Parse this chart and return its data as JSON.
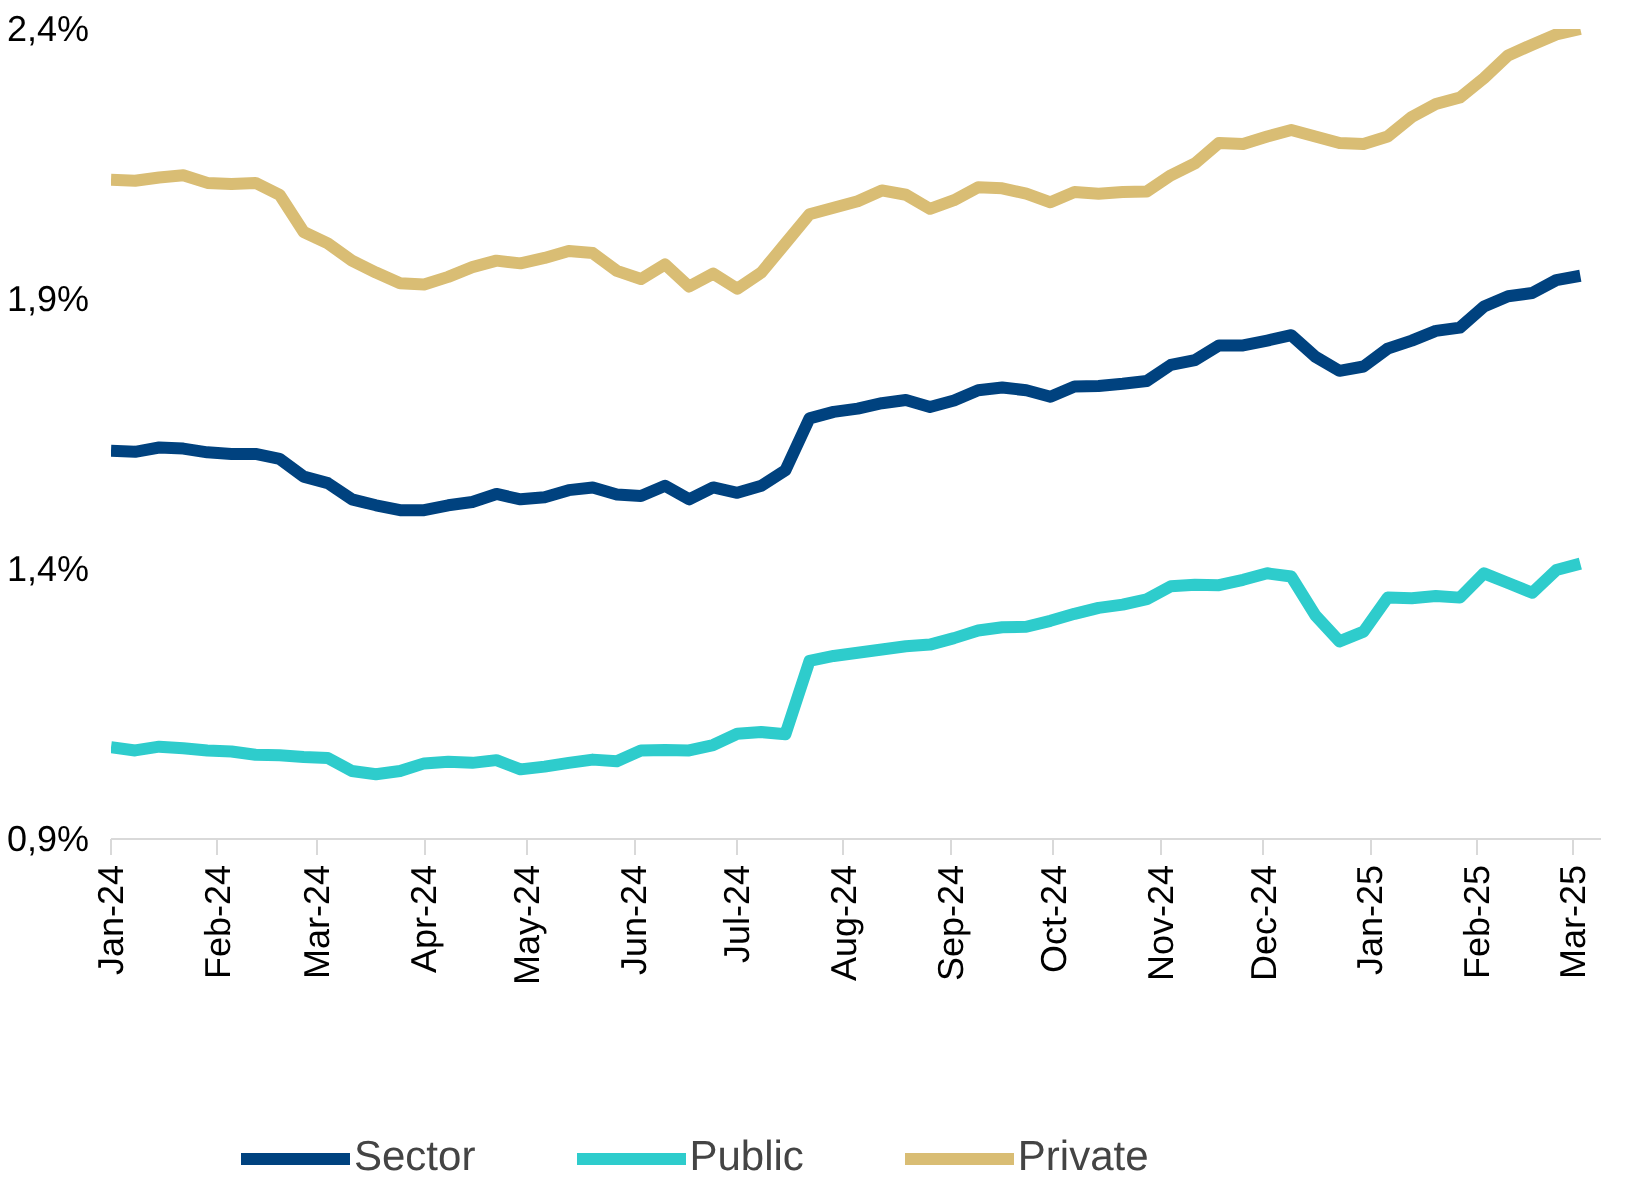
{
  "chart_data": {
    "type": "line",
    "line_style": "solid",
    "marker": "none",
    "grid": false,
    "legend": "bottom",
    "x": [
      "2024-01-01",
      "2024-01-08",
      "2024-01-15",
      "2024-01-22",
      "2024-01-29",
      "2024-02-05",
      "2024-02-12",
      "2024-02-19",
      "2024-02-26",
      "2024-03-04",
      "2024-03-11",
      "2024-03-18",
      "2024-03-25",
      "2024-04-01",
      "2024-04-08",
      "2024-04-15",
      "2024-04-22",
      "2024-04-29",
      "2024-05-06",
      "2024-05-13",
      "2024-05-20",
      "2024-05-27",
      "2024-06-03",
      "2024-06-10",
      "2024-06-17",
      "2024-06-24",
      "2024-07-01",
      "2024-07-08",
      "2024-07-15",
      "2024-07-22",
      "2024-07-29",
      "2024-08-05",
      "2024-08-12",
      "2024-08-19",
      "2024-08-26",
      "2024-09-02",
      "2024-09-09",
      "2024-09-16",
      "2024-09-23",
      "2024-09-30",
      "2024-10-07",
      "2024-10-14",
      "2024-10-21",
      "2024-10-28",
      "2024-11-04",
      "2024-11-11",
      "2024-11-18",
      "2024-11-25",
      "2024-12-02",
      "2024-12-09",
      "2024-12-16",
      "2024-12-23",
      "2024-12-30",
      "2025-01-06",
      "2025-01-13",
      "2025-01-20",
      "2025-01-27",
      "2025-02-03",
      "2025-02-10",
      "2025-02-17",
      "2025-02-24",
      "2025-03-03"
    ],
    "series": [
      {
        "name": "Sector",
        "color": "#00427f",
        "values": [
          1.619,
          1.617,
          1.625,
          1.623,
          1.616,
          1.613,
          1.613,
          1.604,
          1.571,
          1.559,
          1.529,
          1.518,
          1.509,
          1.509,
          1.518,
          1.524,
          1.539,
          1.529,
          1.533,
          1.546,
          1.551,
          1.538,
          1.535,
          1.554,
          1.529,
          1.551,
          1.541,
          1.554,
          1.583,
          1.679,
          1.691,
          1.697,
          1.707,
          1.713,
          1.7,
          1.712,
          1.731,
          1.736,
          1.731,
          1.719,
          1.738,
          1.739,
          1.743,
          1.748,
          1.778,
          1.787,
          1.814,
          1.814,
          1.823,
          1.833,
          1.793,
          1.767,
          1.775,
          1.808,
          1.823,
          1.841,
          1.847,
          1.886,
          1.905,
          1.911,
          1.935,
          1.943
        ]
      },
      {
        "name": "Public",
        "color": "#2ecccc",
        "values": [
          1.07,
          1.064,
          1.071,
          1.068,
          1.064,
          1.062,
          1.056,
          1.055,
          1.052,
          1.05,
          1.026,
          1.02,
          1.026,
          1.04,
          1.043,
          1.041,
          1.046,
          1.029,
          1.034,
          1.041,
          1.047,
          1.044,
          1.064,
          1.065,
          1.064,
          1.074,
          1.095,
          1.098,
          1.094,
          1.23,
          1.239,
          1.245,
          1.251,
          1.257,
          1.26,
          1.272,
          1.286,
          1.292,
          1.293,
          1.304,
          1.317,
          1.328,
          1.334,
          1.344,
          1.368,
          1.371,
          1.37,
          1.38,
          1.392,
          1.386,
          1.314,
          1.266,
          1.284,
          1.347,
          1.346,
          1.35,
          1.347,
          1.392,
          1.374,
          1.356,
          1.398,
          1.41
        ]
      },
      {
        "name": "Private",
        "color": "#d9bd74",
        "values": [
          2.121,
          2.119,
          2.125,
          2.129,
          2.115,
          2.113,
          2.115,
          2.093,
          2.024,
          2.003,
          1.971,
          1.949,
          1.929,
          1.927,
          1.941,
          1.959,
          1.971,
          1.966,
          1.976,
          1.989,
          1.985,
          1.952,
          1.937,
          1.964,
          1.923,
          1.947,
          1.919,
          1.949,
          2.003,
          2.057,
          2.069,
          2.081,
          2.101,
          2.093,
          2.067,
          2.083,
          2.107,
          2.105,
          2.095,
          2.079,
          2.098,
          2.095,
          2.098,
          2.099,
          2.129,
          2.151,
          2.189,
          2.187,
          2.201,
          2.213,
          2.201,
          2.189,
          2.187,
          2.201,
          2.237,
          2.261,
          2.273,
          2.309,
          2.351,
          2.371,
          2.39,
          2.4
        ]
      }
    ],
    "xlim": [
      "2024-01-01",
      "2025-03-09"
    ],
    "xticks": [
      {
        "value": "2024-01-01",
        "label": "Jan-24"
      },
      {
        "value": "2024-02-01",
        "label": "Feb-24"
      },
      {
        "value": "2024-03-01",
        "label": "Mar-24"
      },
      {
        "value": "2024-04-01",
        "label": "Apr-24"
      },
      {
        "value": "2024-05-01",
        "label": "May-24"
      },
      {
        "value": "2024-06-01",
        "label": "Jun-24"
      },
      {
        "value": "2024-07-01",
        "label": "Jul-24"
      },
      {
        "value": "2024-08-01",
        "label": "Aug-24"
      },
      {
        "value": "2024-09-01",
        "label": "Sep-24"
      },
      {
        "value": "2024-10-01",
        "label": "Oct-24"
      },
      {
        "value": "2024-11-01",
        "label": "Nov-24"
      },
      {
        "value": "2024-12-01",
        "label": "Dec-24"
      },
      {
        "value": "2025-01-01",
        "label": "Jan-25"
      },
      {
        "value": "2025-02-01",
        "label": "Feb-25"
      },
      {
        "value": "2025-03-01",
        "label": "Mar-25"
      }
    ],
    "ylim": [
      0.9,
      2.4
    ],
    "yticks": [
      {
        "value": 0.9,
        "label": "0,9%"
      },
      {
        "value": 1.4,
        "label": "1,4%"
      },
      {
        "value": 1.9,
        "label": "1,9%"
      },
      {
        "value": 2.4,
        "label": "2,4%"
      }
    ]
  }
}
